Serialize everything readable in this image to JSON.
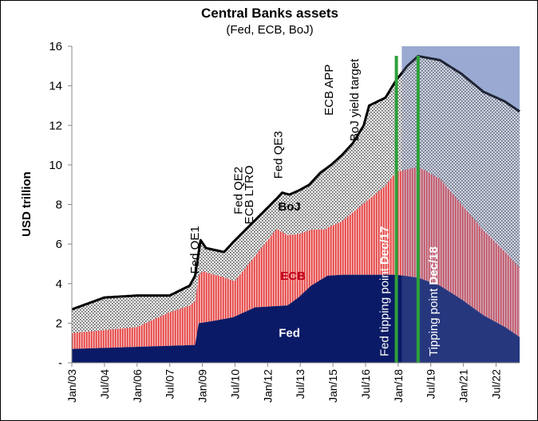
{
  "chart_data": {
    "type": "area",
    "title": "Central Banks assets",
    "subtitle": "(Fed, ECB, BoJ)",
    "ylabel": "USD trillion",
    "xlabel": "",
    "ylim": [
      0,
      16
    ],
    "y_ticks": [
      "-",
      "2",
      "4",
      "6",
      "8",
      "10",
      "12",
      "14",
      "16"
    ],
    "x_tick_labels": [
      "Jan/03",
      "Jul/04",
      "Jan/06",
      "Jul/07",
      "Jan/09",
      "Jul/10",
      "Jan/12",
      "Jul/13",
      "Jan/15",
      "Jul/16",
      "Jan/18",
      "Jul/19",
      "Jan/21",
      "Jul/22"
    ],
    "x_range": [
      "2003-01",
      "2023-08"
    ],
    "stacked": true,
    "forecast_shading_from": "2018-03",
    "grid": false,
    "series": [
      {
        "name": "Fed",
        "color": "#0b1a66",
        "points": [
          [
            "2003-01",
            0.7
          ],
          [
            "2008-09",
            0.9
          ],
          [
            "2008-11",
            2.0
          ],
          [
            "2009-06",
            2.1
          ],
          [
            "2010-06",
            2.3
          ],
          [
            "2011-06",
            2.8
          ],
          [
            "2012-12",
            2.9
          ],
          [
            "2013-06",
            3.3
          ],
          [
            "2014-01",
            3.9
          ],
          [
            "2014-10",
            4.4
          ],
          [
            "2015-06",
            4.45
          ],
          [
            "2016-06",
            4.45
          ],
          [
            "2017-12",
            4.45
          ],
          [
            "2018-12",
            4.3
          ],
          [
            "2019-12",
            3.9
          ],
          [
            "2020-12",
            3.2
          ],
          [
            "2021-12",
            2.4
          ],
          [
            "2022-12",
            1.8
          ],
          [
            "2023-08",
            1.3
          ]
        ]
      },
      {
        "name": "ECB",
        "color": "#f08080",
        "points": [
          [
            "2003-01",
            0.8
          ],
          [
            "2004-07",
            0.9
          ],
          [
            "2006-01",
            1.0
          ],
          [
            "2007-07",
            1.7
          ],
          [
            "2008-06",
            2.0
          ],
          [
            "2008-10",
            2.3
          ],
          [
            "2009-01",
            2.6
          ],
          [
            "2010-01",
            2.1
          ],
          [
            "2010-07",
            1.8
          ],
          [
            "2011-06",
            2.6
          ],
          [
            "2012-06",
            3.9
          ],
          [
            "2013-06",
            3.2
          ],
          [
            "2014-09",
            2.4
          ],
          [
            "2015-06",
            2.7
          ],
          [
            "2016-06",
            3.6
          ],
          [
            "2017-06",
            4.5
          ],
          [
            "2017-12",
            5.2
          ],
          [
            "2018-06",
            5.4
          ],
          [
            "2018-12",
            5.6
          ],
          [
            "2019-12",
            5.4
          ],
          [
            "2020-12",
            4.8
          ],
          [
            "2021-12",
            4.3
          ],
          [
            "2022-12",
            3.8
          ],
          [
            "2023-08",
            3.5
          ]
        ]
      },
      {
        "name": "BoJ",
        "color": "#9a9a9a",
        "points": [
          [
            "2003-01",
            1.1
          ],
          [
            "2004-07",
            1.8
          ],
          [
            "2006-01",
            1.5
          ],
          [
            "2007-07",
            0.7
          ],
          [
            "2008-06",
            0.7
          ],
          [
            "2008-10",
            1.0
          ],
          [
            "2009-01",
            1.1
          ],
          [
            "2010-01",
            1.2
          ],
          [
            "2011-06",
            1.2
          ],
          [
            "2012-06",
            1.3
          ],
          [
            "2013-06",
            1.6
          ],
          [
            "2014-06",
            2.1
          ],
          [
            "2015-06",
            2.9
          ],
          [
            "2016-06",
            3.6
          ],
          [
            "2017-06",
            4.3
          ],
          [
            "2017-12",
            4.6
          ],
          [
            "2018-06",
            5.1
          ],
          [
            "2018-12",
            5.6
          ],
          [
            "2019-12",
            6.0
          ],
          [
            "2020-12",
            6.4
          ],
          [
            "2021-12",
            6.8
          ],
          [
            "2022-12",
            7.4
          ],
          [
            "2023-08",
            7.9
          ]
        ]
      }
    ],
    "total_line": {
      "color": "#000000",
      "points": [
        [
          "2003-01",
          2.7
        ],
        [
          "2004-07",
          3.3
        ],
        [
          "2006-01",
          3.4
        ],
        [
          "2007-07",
          3.4
        ],
        [
          "2008-06",
          3.9
        ],
        [
          "2008-09",
          4.4
        ],
        [
          "2008-12",
          6.2
        ],
        [
          "2009-03",
          5.8
        ],
        [
          "2010-01",
          5.6
        ],
        [
          "2010-06",
          6.1
        ],
        [
          "2011-06",
          7.2
        ],
        [
          "2012-06",
          8.3
        ],
        [
          "2012-09",
          8.6
        ],
        [
          "2013-01",
          8.5
        ],
        [
          "2013-06",
          8.7
        ],
        [
          "2013-12",
          9.0
        ],
        [
          "2014-06",
          9.6
        ],
        [
          "2014-12",
          10.0
        ],
        [
          "2015-06",
          10.5
        ],
        [
          "2015-12",
          11.1
        ],
        [
          "2016-06",
          12.0
        ],
        [
          "2016-09",
          13.0
        ],
        [
          "2017-06",
          13.4
        ],
        [
          "2017-12",
          14.3
        ],
        [
          "2018-06",
          15.0
        ],
        [
          "2018-12",
          15.5
        ],
        [
          "2019-12",
          15.3
        ],
        [
          "2020-12",
          14.6
        ],
        [
          "2021-12",
          13.7
        ],
        [
          "2022-12",
          13.2
        ],
        [
          "2023-08",
          12.7
        ]
      ]
    },
    "annotations": [
      {
        "text": "Fed QE1",
        "date": "2008-11",
        "y": 4.5
      },
      {
        "text": "Fed QE2",
        "date": "2010-11",
        "y": 7.5
      },
      {
        "text": "ECB LTRO",
        "date": "2011-05",
        "y": 7.0
      },
      {
        "text": "Fed QE3",
        "date": "2012-09",
        "y": 9.3
      },
      {
        "text": "ECB APP",
        "date": "2015-01",
        "y": 12.5
      },
      {
        "text": "BoJ yield target",
        "date": "2016-03",
        "y": 11.2
      }
    ],
    "series_labels": [
      {
        "text": "BoJ",
        "date": "2013-01",
        "y": 7.7
      },
      {
        "text": "ECB",
        "date": "2013-03",
        "y": 4.2
      },
      {
        "text": "Fed",
        "date": "2013-01",
        "y": 1.3
      }
    ],
    "markers": [
      {
        "date": "2017-12",
        "color": "#2ea03a",
        "label_plain": "Fed tipping point ",
        "label_bold": "Dec/17"
      },
      {
        "date": "2018-12",
        "color": "#2ea03a",
        "label_plain": "Tipping point ",
        "label_bold": "Dec/18"
      }
    ]
  }
}
